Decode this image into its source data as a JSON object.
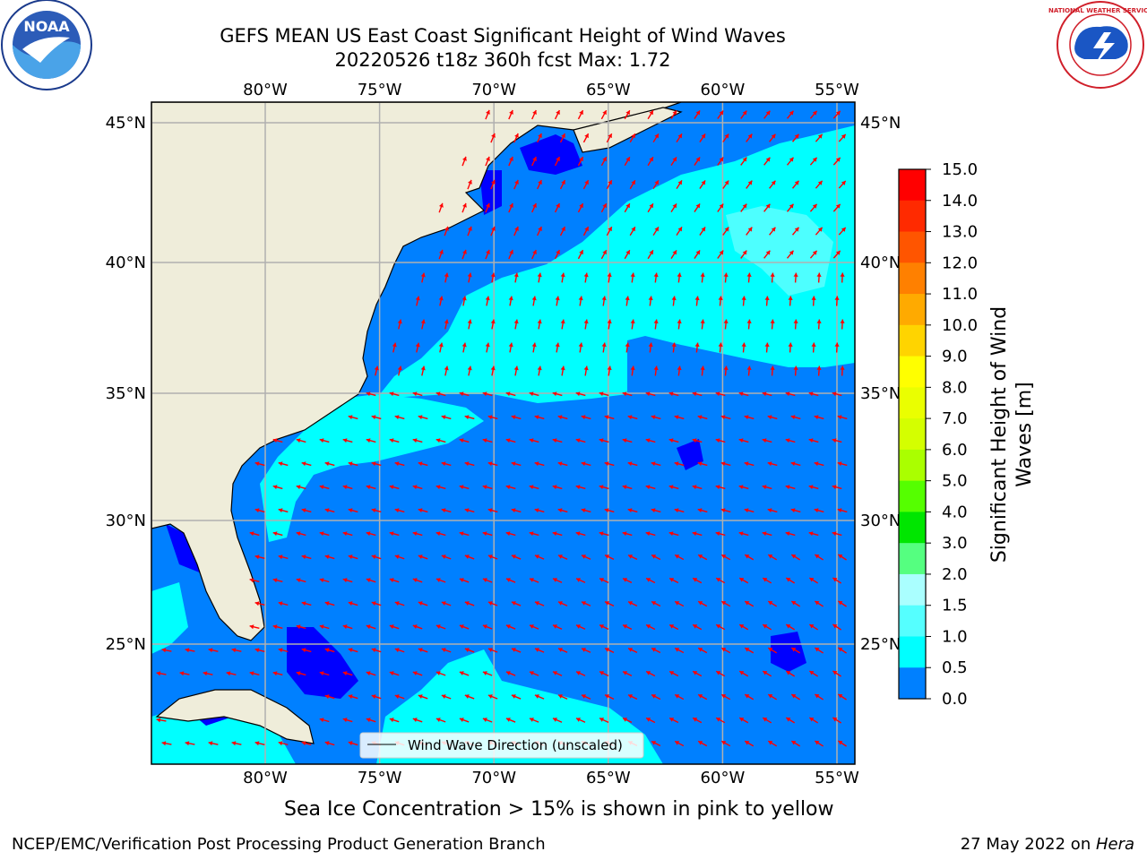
{
  "title": {
    "line1": "GEFS MEAN US East Coast Significant Height of Wind Waves",
    "line2": "20220526 t18z 360h fcst   Max: 1.72"
  },
  "map": {
    "lon_labels": [
      "80°W",
      "75°W",
      "70°W",
      "65°W",
      "60°W",
      "55°W"
    ],
    "lat_labels": [
      "45°N",
      "40°N",
      "35°N",
      "30°N",
      "25°N"
    ],
    "lon_values": [
      -80,
      -75,
      -70,
      -65,
      -60,
      -55
    ],
    "lat_values": [
      45,
      40,
      35,
      30,
      25
    ],
    "legend_label": "Wind Wave Direction (unscaled)",
    "colors": {
      "land": "#efedda",
      "deep_blue": "#0000ff",
      "mid_blue": "#0080ff",
      "cyan": "#00ffff",
      "light_cyan": "#4dffff",
      "arrow": "#ff0000",
      "grid": "#b0b0b0"
    }
  },
  "colorbar": {
    "label": "Significant Height of Wind Waves [m]",
    "label_line1": "Significant Height of Wind",
    "label_line2": "Waves [m]",
    "ticks": [
      "15.0",
      "14.0",
      "13.0",
      "12.0",
      "11.0",
      "10.0",
      "9.0",
      "8.0",
      "7.0",
      "6.0",
      "5.0",
      "4.0",
      "3.0",
      "2.0",
      "1.5",
      "1.0",
      "0.5",
      "0.0"
    ],
    "colors": [
      "#ff0000",
      "#ff2a00",
      "#ff5500",
      "#ff8000",
      "#ffaa00",
      "#ffd400",
      "#ffff00",
      "#eaff00",
      "#d4ff00",
      "#aaff00",
      "#55ff00",
      "#00e600",
      "#55ff80",
      "#aaffff",
      "#55ffff",
      "#00ffff",
      "#0080ff",
      "#0000ff"
    ]
  },
  "caption": "Sea Ice Concentration > 15% is shown in pink to yellow",
  "footer": {
    "left": "NCEP/EMC/Verification Post Processing Product Generation Branch",
    "right_date": "27 May 2022 on ",
    "right_host": "Hera"
  },
  "logos": {
    "noaa_text": "NOAA",
    "nws_text": "NATIONAL WEATHER SERVICE"
  }
}
